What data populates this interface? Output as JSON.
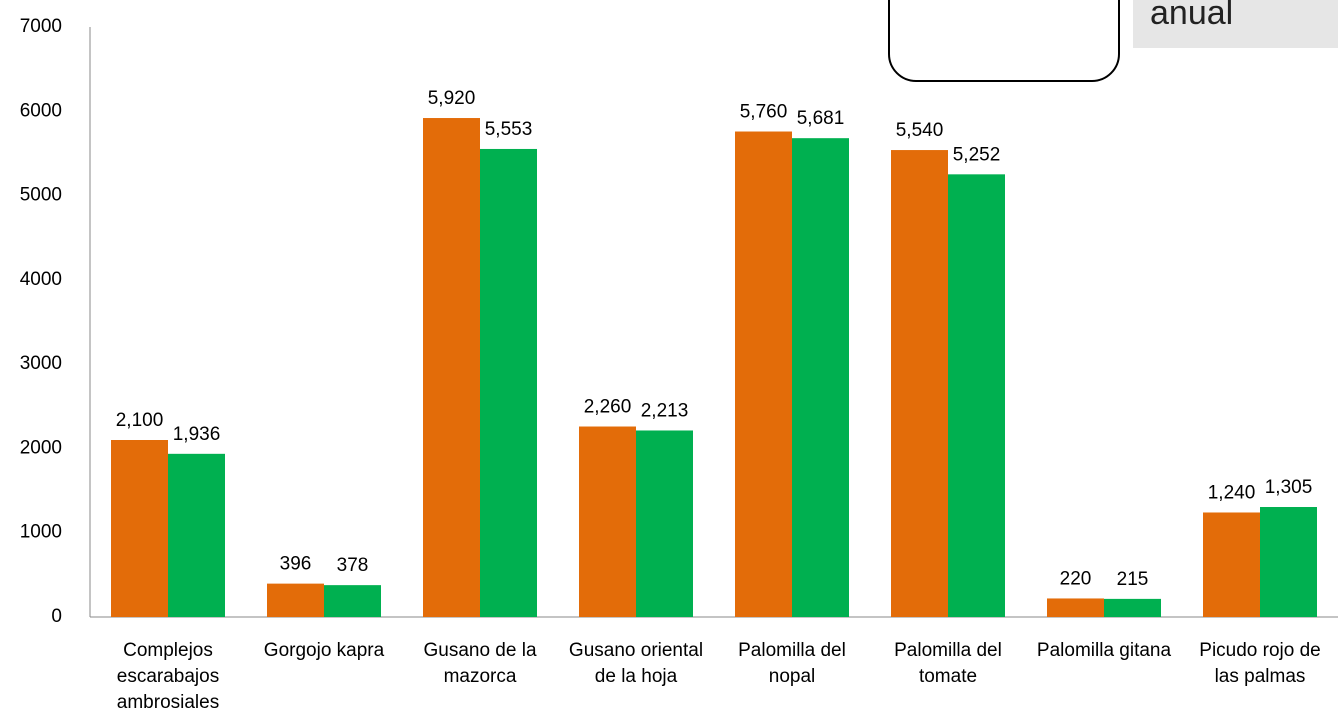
{
  "chart_data": {
    "type": "bar",
    "annotations": [
      "anual"
    ],
    "categories": [
      "Complejos escarabajos ambrosiales",
      "Gorgojo kapra",
      "Gusano de la mazorca",
      "Gusano oriental de la hoja",
      "Palomilla del nopal",
      "Palomilla del tomate",
      "Palomilla gitana",
      "Picudo rojo de las palmas"
    ],
    "series": [
      {
        "color": "#e36c09",
        "values": [
          2100,
          396,
          5920,
          2260,
          5760,
          5540,
          220,
          1240
        ],
        "value_labels": [
          "2,100",
          "396",
          "5,920",
          "2,260",
          "5,760",
          "5,540",
          "220",
          "1,240"
        ]
      },
      {
        "color": "#00b050",
        "values": [
          1936,
          378,
          5553,
          2213,
          5681,
          5252,
          215,
          1305
        ],
        "value_labels": [
          "1,936",
          "378",
          "5,553",
          "2,213",
          "5,681",
          "5,252",
          "215",
          "1,305"
        ]
      }
    ],
    "ylim": [
      0,
      7000
    ],
    "yticks": [
      0,
      1000,
      2000,
      3000,
      4000,
      5000,
      6000,
      7000
    ],
    "grid": false
  }
}
